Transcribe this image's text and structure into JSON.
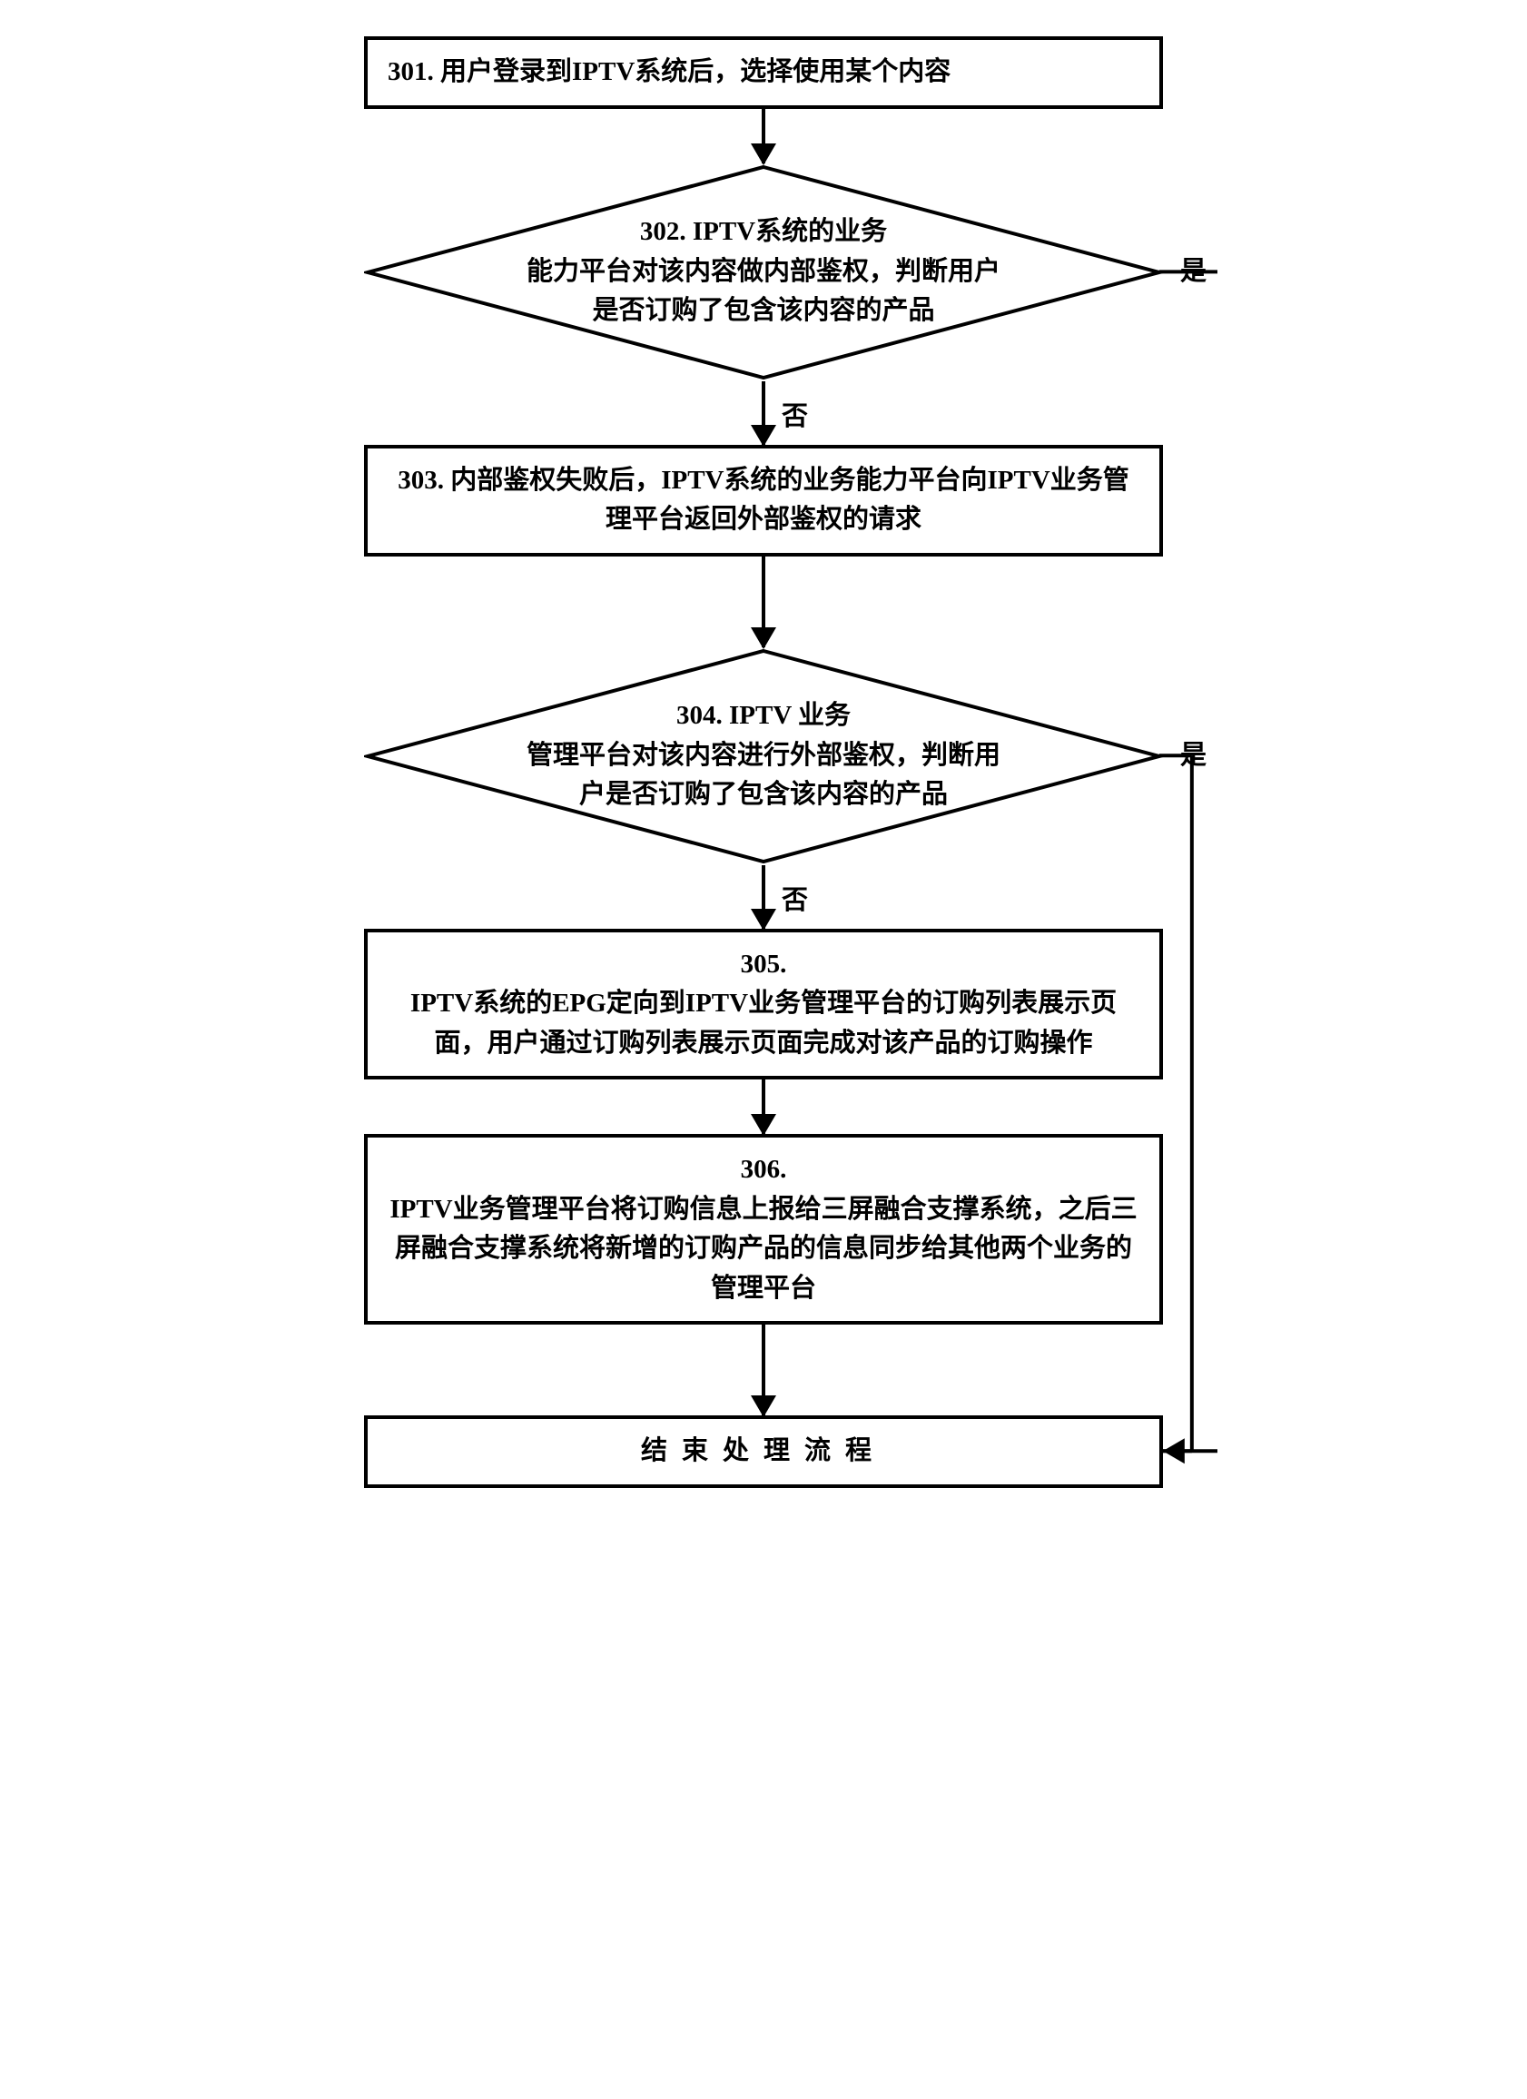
{
  "flow": {
    "step301": "301. 用户登录到IPTV系统后，选择使用某个内容",
    "step302": "302. IPTV系统的业务\n能力平台对该内容做内部鉴权，判断用户\n是否订购了包含该内容的产品",
    "step303": "303. 内部鉴权失败后，IPTV系统的业务能力平台向IPTV业务管理平台返回外部鉴权的请求",
    "step304": "304. IPTV 业务\n管理平台对该内容进行外部鉴权，判断用\n户是否订购了包含该内容的产品",
    "step305": "305.\nIPTV系统的EPG定向到IPTV业务管理平台的订购列表展示页面，用户通过订购列表展示页面完成对该产品的订购操作",
    "step306": "306.\nIPTV业务管理平台将订购信息上报给三屏融合支撑系统，之后三屏融合支撑系统将新增的订购产品的信息同步给其他两个业务的管理平台",
    "end": "结束处理流程",
    "yes": "是",
    "no": "否"
  },
  "style": {
    "border_color": "#000000",
    "border_width": 4,
    "font_size": 29,
    "background": "#ffffff",
    "arrow_height_short": 60,
    "arrow_height_med": 70
  }
}
